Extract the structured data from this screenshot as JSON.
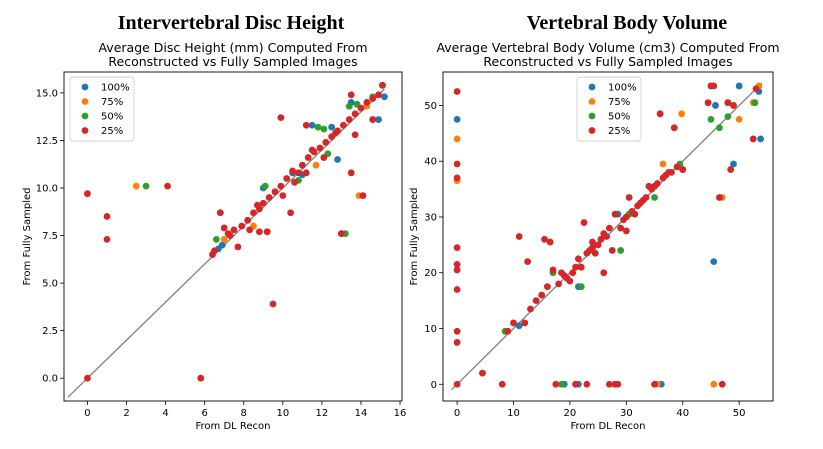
{
  "panels": [
    {
      "big_title": "Intervertebral Disc Height"
    },
    {
      "big_title": "Vertebral Body Volume"
    }
  ],
  "chart_data": [
    {
      "type": "scatter",
      "title_line1": "Average Disc Height (mm) Computed From",
      "title_line2": "Reconstructed vs Fully Sampled Images",
      "xlabel": "From DL Recon",
      "ylabel": "From Fully Sampled",
      "xlim": [
        -1.2,
        16.1
      ],
      "ylim": [
        -1.2,
        16.1
      ],
      "xticks": [
        "0",
        "2",
        "4",
        "6",
        "8",
        "10",
        "12",
        "14",
        "16"
      ],
      "xtick_values": [
        0,
        2,
        4,
        6,
        8,
        10,
        12,
        14,
        16
      ],
      "yticks": [
        "0.0",
        "2.5",
        "5.0",
        "7.5",
        "10.0",
        "12.5",
        "15.0"
      ],
      "ytick_values": [
        0,
        2.5,
        5,
        7.5,
        10,
        12.5,
        15
      ],
      "legend_position": "upper-left",
      "identity_line": [
        -1,
        15.2
      ],
      "series": [
        {
          "name": "100%",
          "color": "#1f77b4",
          "points": [
            [
              6.8,
              8.7
            ],
            [
              6.7,
              6.8
            ],
            [
              6.9,
              7.0
            ],
            [
              9.0,
              10.0
            ],
            [
              10.5,
              10.8
            ],
            [
              11.5,
              13.3
            ],
            [
              12.5,
              13.2
            ],
            [
              13.5,
              14.5
            ],
            [
              14.9,
              13.6
            ],
            [
              15.2,
              14.8
            ],
            [
              13.0,
              7.6
            ],
            [
              9.2,
              7.7
            ],
            [
              12.8,
              11.5
            ],
            [
              11.0,
              10.7
            ]
          ]
        },
        {
          "name": "75%",
          "color": "#ff7f0e",
          "points": [
            [
              2.5,
              10.1
            ],
            [
              13.9,
              9.6
            ],
            [
              7.0,
              7.3
            ],
            [
              8.5,
              8.0
            ],
            [
              11.7,
              11.2
            ],
            [
              12.2,
              12.4
            ],
            [
              14.3,
              14.3
            ],
            [
              15.1,
              15.4
            ]
          ]
        },
        {
          "name": "50%",
          "color": "#2ca02c",
          "points": [
            [
              3.0,
              10.1
            ],
            [
              6.6,
              7.3
            ],
            [
              9.1,
              10.1
            ],
            [
              11.8,
              13.2
            ],
            [
              13.2,
              7.6
            ],
            [
              13.4,
              14.3
            ],
            [
              12.1,
              13.1
            ],
            [
              10.8,
              10.4
            ],
            [
              12.3,
              11.8
            ],
            [
              13.8,
              14.4
            ],
            [
              14.6,
              14.8
            ]
          ]
        },
        {
          "name": "25%",
          "color": "#d62728",
          "points": [
            [
              0,
              9.7
            ],
            [
              1.0,
              8.5
            ],
            [
              1.0,
              7.3
            ],
            [
              0,
              0
            ],
            [
              4.1,
              10.1
            ],
            [
              5.8,
              0
            ],
            [
              9.5,
              3.9
            ],
            [
              6.4,
              6.5
            ],
            [
              6.5,
              6.7
            ],
            [
              6.8,
              8.7
            ],
            [
              7.0,
              7.9
            ],
            [
              7.3,
              7.5
            ],
            [
              7.5,
              7.8
            ],
            [
              7.7,
              6.9
            ],
            [
              7.9,
              8.0
            ],
            [
              8.2,
              8.3
            ],
            [
              8.5,
              8.7
            ],
            [
              8.8,
              8.9
            ],
            [
              9.0,
              9.2
            ],
            [
              9.3,
              9.5
            ],
            [
              9.6,
              9.8
            ],
            [
              9.9,
              10.1
            ],
            [
              10.2,
              10.5
            ],
            [
              10.5,
              10.9
            ],
            [
              10.8,
              10.8
            ],
            [
              11.0,
              11.2
            ],
            [
              11.3,
              11.6
            ],
            [
              11.6,
              11.9
            ],
            [
              11.9,
              12.1
            ],
            [
              12.2,
              12.4
            ],
            [
              12.5,
              12.7
            ],
            [
              12.8,
              13.0
            ],
            [
              13.1,
              13.3
            ],
            [
              13.4,
              13.6
            ],
            [
              13.7,
              13.9
            ],
            [
              14.0,
              14.2
            ],
            [
              14.3,
              14.5
            ],
            [
              14.6,
              14.7
            ],
            [
              14.9,
              14.9
            ],
            [
              15.1,
              15.4
            ],
            [
              9.9,
              13.7
            ],
            [
              11.2,
              13.3
            ],
            [
              10.4,
              8.7
            ],
            [
              13.0,
              7.6
            ],
            [
              13.5,
              10.8
            ],
            [
              14.1,
              9.6
            ],
            [
              14.6,
              13.6
            ],
            [
              13.5,
              14.9
            ],
            [
              9.2,
              7.7
            ],
            [
              8.8,
              7.7
            ],
            [
              11.2,
              10.8
            ],
            [
              12.1,
              11.6
            ],
            [
              10.0,
              9.6
            ],
            [
              8.3,
              7.8
            ],
            [
              13.7,
              12.8
            ],
            [
              11.5,
              12.0
            ],
            [
              10.6,
              10.3
            ],
            [
              12.7,
              12.9
            ],
            [
              7.2,
              7.6
            ],
            [
              8.7,
              9.1
            ]
          ]
        }
      ]
    },
    {
      "type": "scatter",
      "title_line1": "Average Vertebral Body Volume (cm3) Computed From",
      "title_line2": "Reconstructed vs Fully Sampled Images",
      "xlabel": "From DL Recon",
      "ylabel": "From Fully Sampled",
      "xlim": [
        -2.5,
        56
      ],
      "ylim": [
        -3,
        56
      ],
      "xticks": [
        "0",
        "10",
        "20",
        "30",
        "40",
        "50"
      ],
      "xtick_values": [
        0,
        10,
        20,
        30,
        40,
        50
      ],
      "yticks": [
        "0",
        "10",
        "20",
        "30",
        "40",
        "50"
      ],
      "ytick_values": [
        0,
        10,
        20,
        30,
        40,
        50
      ],
      "legend_position": "upper-center",
      "identity_line": [
        -1,
        54
      ],
      "series": [
        {
          "name": "100%",
          "color": "#1f77b4",
          "points": [
            [
              0,
              47.5
            ],
            [
              11.0,
              10.5
            ],
            [
              21.5,
              17.5
            ],
            [
              28.5,
              30.5
            ],
            [
              36.0,
              48.5
            ],
            [
              36.2,
              0
            ],
            [
              45.5,
              22.0
            ],
            [
              45.8,
              50.0
            ],
            [
              48.0,
              50.5
            ],
            [
              49.0,
              39.5
            ],
            [
              50.0,
              53.5
            ],
            [
              53.5,
              52.5
            ],
            [
              53.8,
              44.0
            ],
            [
              40.0,
              38.5
            ],
            [
              19.0,
              0
            ],
            [
              21.5,
              0
            ]
          ]
        },
        {
          "name": "75%",
          "color": "#ff7f0e",
          "points": [
            [
              0,
              44.0
            ],
            [
              0,
              36.5
            ],
            [
              4.5,
              2.0
            ],
            [
              36.5,
              39.5
            ],
            [
              38.5,
              46.0
            ],
            [
              39.8,
              48.5
            ],
            [
              45.5,
              0
            ],
            [
              47.0,
              33.5
            ],
            [
              50.0,
              47.5
            ],
            [
              52.5,
              50.5
            ],
            [
              53.5,
              53.5
            ],
            [
              35.5,
              0
            ]
          ]
        },
        {
          "name": "50%",
          "color": "#2ca02c",
          "points": [
            [
              8.5,
              9.5
            ],
            [
              18.5,
              0
            ],
            [
              22.0,
              17.5
            ],
            [
              29.0,
              24.0
            ],
            [
              35.0,
              33.5
            ],
            [
              39.5,
              39.5
            ],
            [
              46.5,
              46.0
            ],
            [
              48.0,
              48.0
            ],
            [
              45.0,
              47.5
            ],
            [
              52.8,
              50.5
            ],
            [
              30.5,
              30.5
            ],
            [
              17.0,
              20.0
            ]
          ]
        },
        {
          "name": "25%",
          "color": "#d62728",
          "points": [
            [
              0,
              52.5
            ],
            [
              0,
              39.5
            ],
            [
              0,
              37.0
            ],
            [
              0,
              24.5
            ],
            [
              0,
              21.5
            ],
            [
              0,
              20.5
            ],
            [
              0,
              17.0
            ],
            [
              0,
              9.5
            ],
            [
              0,
              7.5
            ],
            [
              0,
              0
            ],
            [
              4.5,
              2.0
            ],
            [
              8.0,
              0
            ],
            [
              9.0,
              9.5
            ],
            [
              10.0,
              11.0
            ],
            [
              11.0,
              26.5
            ],
            [
              12.0,
              11.0
            ],
            [
              12.5,
              22.0
            ],
            [
              13.0,
              13.5
            ],
            [
              14.0,
              15.0
            ],
            [
              15.0,
              16.0
            ],
            [
              16.0,
              17.5
            ],
            [
              16.5,
              25.5
            ],
            [
              17.0,
              20.5
            ],
            [
              17.5,
              0
            ],
            [
              18.0,
              18.0
            ],
            [
              18.5,
              20.0
            ],
            [
              19.0,
              19.5
            ],
            [
              19.5,
              19.0
            ],
            [
              20.0,
              18.5
            ],
            [
              20.5,
              20.0
            ],
            [
              21.0,
              21.0
            ],
            [
              21.5,
              22.5
            ],
            [
              22.0,
              21.0
            ],
            [
              22.5,
              29.0
            ],
            [
              23.0,
              23.5
            ],
            [
              23.5,
              24.0
            ],
            [
              24.0,
              24.5
            ],
            [
              24.5,
              23.5
            ],
            [
              25.0,
              25.0
            ],
            [
              25.5,
              26.0
            ],
            [
              26.0,
              20.0
            ],
            [
              26.5,
              26.5
            ],
            [
              27.0,
              28.0
            ],
            [
              27.5,
              24.0
            ],
            [
              28.0,
              30.5
            ],
            [
              28.5,
              0
            ],
            [
              29.0,
              28.0
            ],
            [
              29.5,
              29.5
            ],
            [
              30.0,
              30.0
            ],
            [
              30.5,
              33.5
            ],
            [
              31.0,
              31.0
            ],
            [
              31.5,
              30.5
            ],
            [
              32.0,
              32.0
            ],
            [
              32.5,
              32.5
            ],
            [
              33.0,
              33.0
            ],
            [
              33.5,
              33.5
            ],
            [
              34.0,
              35.5
            ],
            [
              34.5,
              35.0
            ],
            [
              35.0,
              35.5
            ],
            [
              35.5,
              36.0
            ],
            [
              36.0,
              48.5
            ],
            [
              36.5,
              37.0
            ],
            [
              37.0,
              37.5
            ],
            [
              37.5,
              38.0
            ],
            [
              38.0,
              38.0
            ],
            [
              38.5,
              46.0
            ],
            [
              39.0,
              39.0
            ],
            [
              40.0,
              38.5
            ],
            [
              44.5,
              50.5
            ],
            [
              45.0,
              53.5
            ],
            [
              45.5,
              53.5
            ],
            [
              46.5,
              33.5
            ],
            [
              47.0,
              0
            ],
            [
              48.0,
              50.5
            ],
            [
              48.5,
              38.5
            ],
            [
              49.0,
              50.0
            ],
            [
              52.5,
              44.0
            ],
            [
              53.0,
              53.0
            ],
            [
              21.0,
              0
            ],
            [
              23.0,
              0
            ],
            [
              27.0,
              0
            ],
            [
              28.0,
              0
            ],
            [
              35.0,
              0
            ],
            [
              15.5,
              26.0
            ],
            [
              24.0,
              25.5
            ],
            [
              26.0,
              27.0
            ],
            [
              30.0,
              27.5
            ]
          ]
        }
      ]
    }
  ]
}
